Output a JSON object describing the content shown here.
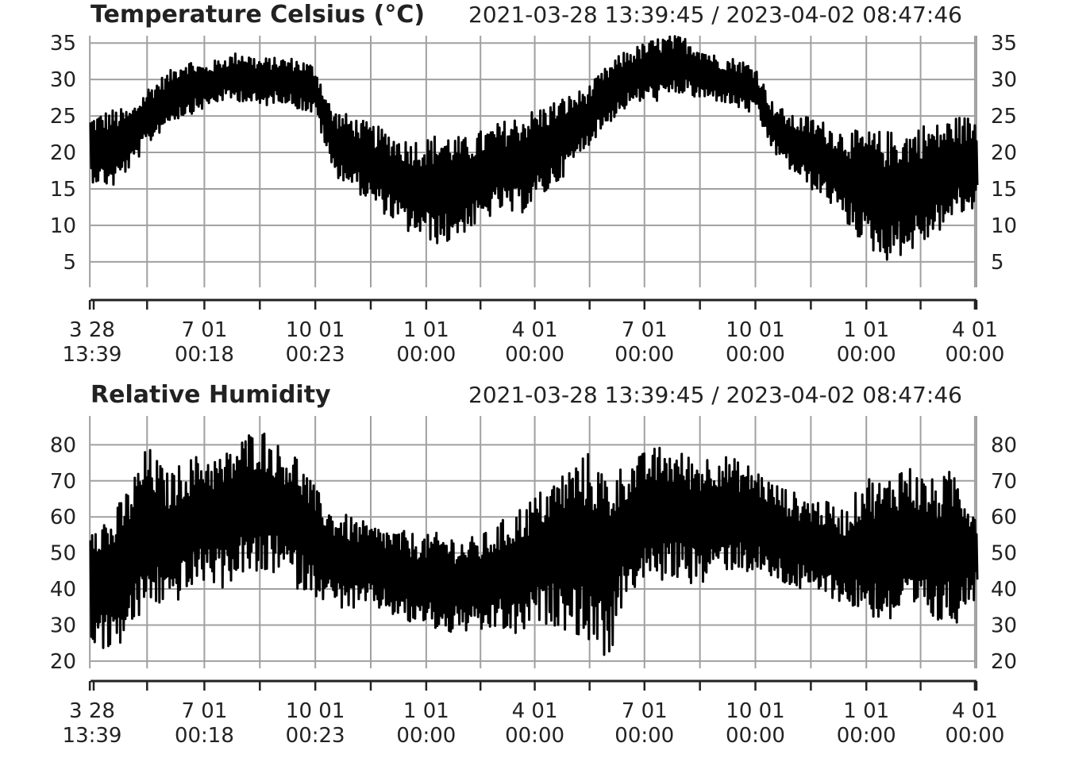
{
  "chart_data": [
    {
      "type": "line",
      "title": "Temperature Celsius (°C)",
      "range_label": "2021-03-28 13:39:45 / 2023-04-02 08:47:46",
      "x_start": "2021-03-28 13:39:45",
      "x_end": "2023-04-02 08:47:46",
      "ylim": [
        1.5,
        36
      ],
      "yticks": [
        5,
        10,
        15,
        20,
        25,
        30,
        35
      ],
      "ytick_labels": [
        "5",
        "10",
        "15",
        "20",
        "25",
        "30",
        "35"
      ],
      "grid": true,
      "xtick_labels": [
        {
          "date": "2021-03-28",
          "line1": "3 28",
          "line2": "13:39"
        },
        {
          "date": "2021-07-01",
          "line1": "7 01",
          "line2": "00:18"
        },
        {
          "date": "2021-10-01",
          "line1": "10 01",
          "line2": "00:23"
        },
        {
          "date": "2022-01-01",
          "line1": "1 01",
          "line2": "00:00"
        },
        {
          "date": "2022-04-01",
          "line1": "4 01",
          "line2": "00:00"
        },
        {
          "date": "2022-07-01",
          "line1": "7 01",
          "line2": "00:00"
        },
        {
          "date": "2022-10-01",
          "line1": "10 01",
          "line2": "00:00"
        },
        {
          "date": "2023-01-01",
          "line1": "1 01",
          "line2": "00:00"
        },
        {
          "date": "2023-04-01",
          "line1": "4 01",
          "line2": "00:00"
        }
      ],
      "series": [
        {
          "color": "#000000",
          "x": [
            "2021-03-28",
            "2021-04-15",
            "2021-05-01",
            "2021-05-15",
            "2021-06-01",
            "2021-06-15",
            "2021-07-01",
            "2021-07-15",
            "2021-08-01",
            "2021-08-15",
            "2021-09-01",
            "2021-09-15",
            "2021-10-01",
            "2021-10-15",
            "2021-11-01",
            "2021-11-15",
            "2021-12-01",
            "2021-12-15",
            "2022-01-01",
            "2022-01-15",
            "2022-02-01",
            "2022-02-15",
            "2022-03-01",
            "2022-03-15",
            "2022-04-01",
            "2022-04-15",
            "2022-05-01",
            "2022-05-15",
            "2022-06-01",
            "2022-06-15",
            "2022-07-01",
            "2022-07-15",
            "2022-08-01",
            "2022-08-15",
            "2022-09-01",
            "2022-09-15",
            "2022-10-01",
            "2022-10-15",
            "2022-11-01",
            "2022-11-15",
            "2022-12-01",
            "2022-12-15",
            "2023-01-01",
            "2023-01-15",
            "2023-02-01",
            "2023-02-15",
            "2023-03-01",
            "2023-03-15",
            "2023-04-02"
          ],
          "low": [
            16,
            15,
            18,
            21,
            24,
            25,
            26,
            27,
            27,
            26,
            27,
            26,
            25,
            17,
            15,
            13,
            11,
            9,
            8,
            7,
            9,
            10,
            12,
            11,
            13,
            15,
            18,
            21,
            24,
            26,
            27,
            27,
            28,
            27,
            27,
            26,
            25,
            20,
            17,
            15,
            13,
            10,
            7,
            5,
            6,
            7,
            9,
            11,
            12
          ],
          "high": [
            25,
            26,
            26,
            29,
            31,
            33,
            32,
            33,
            34,
            33,
            33,
            33,
            32,
            26,
            25,
            24,
            23,
            22,
            22,
            23,
            22,
            23,
            24,
            25,
            26,
            27,
            28,
            29,
            32,
            34,
            35,
            36,
            36,
            35,
            33,
            33,
            32,
            27,
            25,
            25,
            24,
            23,
            23,
            23,
            23,
            24,
            24,
            25,
            25
          ]
        }
      ]
    },
    {
      "type": "line",
      "title": "Relative Humidity",
      "range_label": "2021-03-28 13:39:45 / 2023-04-02 08:47:46",
      "x_start": "2021-03-28 13:39:45",
      "x_end": "2023-04-02 08:47:46",
      "ylim": [
        18,
        88
      ],
      "yticks": [
        20,
        30,
        40,
        50,
        60,
        70,
        80
      ],
      "ytick_labels": [
        "20",
        "30",
        "40",
        "50",
        "60",
        "70",
        "80"
      ],
      "grid": true,
      "xtick_labels": [
        {
          "date": "2021-03-28",
          "line1": "3 28",
          "line2": "13:39"
        },
        {
          "date": "2021-07-01",
          "line1": "7 01",
          "line2": "00:18"
        },
        {
          "date": "2021-10-01",
          "line1": "10 01",
          "line2": "00:23"
        },
        {
          "date": "2022-01-01",
          "line1": "1 01",
          "line2": "00:00"
        },
        {
          "date": "2022-04-01",
          "line1": "4 01",
          "line2": "00:00"
        },
        {
          "date": "2022-07-01",
          "line1": "7 01",
          "line2": "00:00"
        },
        {
          "date": "2022-10-01",
          "line1": "10 01",
          "line2": "00:00"
        },
        {
          "date": "2023-01-01",
          "line1": "1 01",
          "line2": "00:00"
        },
        {
          "date": "2023-04-01",
          "line1": "4 01",
          "line2": "00:00"
        }
      ],
      "series": [
        {
          "color": "#000000",
          "x": [
            "2021-03-28",
            "2021-04-15",
            "2021-05-01",
            "2021-05-15",
            "2021-06-01",
            "2021-06-15",
            "2021-07-01",
            "2021-07-15",
            "2021-08-01",
            "2021-08-15",
            "2021-09-01",
            "2021-09-15",
            "2021-10-01",
            "2021-10-15",
            "2021-11-01",
            "2021-11-15",
            "2021-12-01",
            "2021-12-15",
            "2022-01-01",
            "2022-01-15",
            "2022-02-01",
            "2022-02-15",
            "2022-03-01",
            "2022-03-15",
            "2022-04-01",
            "2022-04-15",
            "2022-05-01",
            "2022-05-15",
            "2022-06-01",
            "2022-06-15",
            "2022-07-01",
            "2022-07-15",
            "2022-08-01",
            "2022-08-15",
            "2022-09-01",
            "2022-09-15",
            "2022-10-01",
            "2022-10-15",
            "2022-11-01",
            "2022-11-15",
            "2022-12-01",
            "2022-12-15",
            "2023-01-01",
            "2023-01-15",
            "2023-02-01",
            "2023-02-15",
            "2023-03-01",
            "2023-03-15",
            "2023-04-02"
          ],
          "low": [
            25,
            22,
            28,
            35,
            35,
            38,
            42,
            40,
            44,
            42,
            45,
            40,
            38,
            35,
            34,
            35,
            33,
            30,
            30,
            27,
            28,
            27,
            29,
            26,
            30,
            30,
            28,
            25,
            20,
            38,
            42,
            42,
            43,
            40,
            45,
            45,
            44,
            42,
            40,
            38,
            38,
            35,
            33,
            30,
            31,
            32,
            30,
            30,
            38
          ],
          "high": [
            62,
            60,
            70,
            80,
            72,
            76,
            78,
            77,
            82,
            86,
            80,
            78,
            68,
            62,
            60,
            58,
            57,
            56,
            55,
            56,
            54,
            55,
            58,
            62,
            66,
            70,
            75,
            78,
            72,
            75,
            78,
            80,
            78,
            77,
            78,
            76,
            74,
            70,
            67,
            66,
            64,
            62,
            72,
            70,
            76,
            72,
            70,
            74,
            62
          ]
        }
      ]
    }
  ]
}
